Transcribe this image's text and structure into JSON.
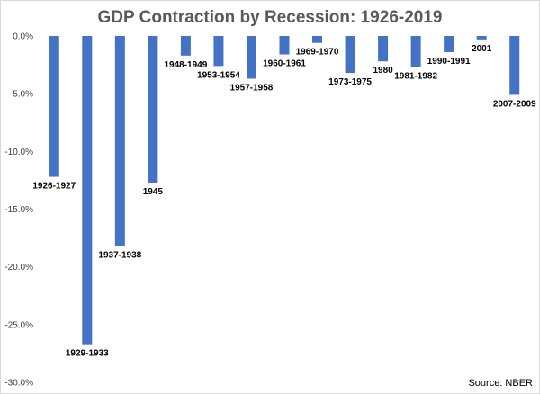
{
  "chart_data": {
    "type": "bar",
    "title": "GDP Contraction by Recession: 1926-2019",
    "source": "Source: NBER",
    "categories": [
      "1926-1927",
      "1929-1933",
      "1937-1938",
      "1945",
      "1948-1949",
      "1953-1954",
      "1957-1958",
      "1960-1961",
      "1969-1970",
      "1973-1975",
      "1980",
      "1981-1982",
      "1990-1991",
      "2001",
      "2007-2009"
    ],
    "values": [
      -12.2,
      -26.7,
      -18.2,
      -12.7,
      -1.7,
      -2.6,
      -3.7,
      -1.6,
      -0.6,
      -3.2,
      -2.2,
      -2.7,
      -1.4,
      -0.3,
      -5.1
    ],
    "ylim": [
      -30,
      0
    ],
    "yticks": [
      "0.0%",
      "-5.0%",
      "-10.0%",
      "-15.0%",
      "-20.0%",
      "-25.0%",
      "-30.0%"
    ],
    "bar_color": "#4472C4",
    "grid": false,
    "legend": "none",
    "xlabel": "",
    "ylabel": ""
  }
}
